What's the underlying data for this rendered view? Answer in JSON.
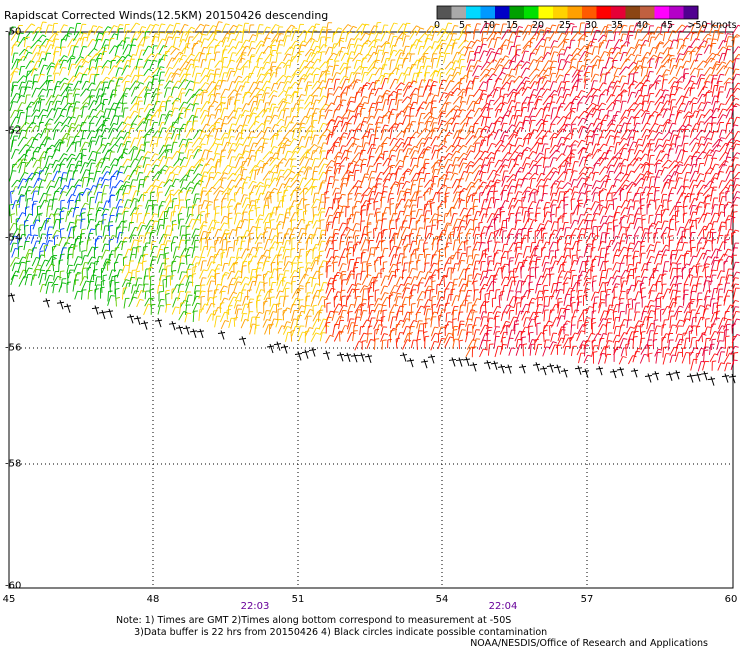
{
  "header": {
    "title": "Rapidscat Corrected Winds(12.5KM) 20150426 descending"
  },
  "color_key": {
    "colors": [
      "#555555",
      "#a9a9a9",
      "#00d9ff",
      "#0099ff",
      "#0000c8",
      "#00a000",
      "#00e000",
      "#ffff00",
      "#ffd200",
      "#ffa000",
      "#ff5a00",
      "#ff0000",
      "#e60036",
      "#8b4513",
      "#c06040",
      "#ff00ff",
      "#b400c8",
      "#500090"
    ],
    "labels": [
      "0",
      "5",
      "10",
      "15",
      "20",
      "25",
      "30",
      "35",
      "40",
      "45",
      ">50 knots"
    ]
  },
  "axes": {
    "x_ticks": [
      "45",
      "48",
      "51",
      "54",
      "57",
      "60"
    ],
    "y_ticks": [
      "-50",
      "-52",
      "-54",
      "-56",
      "-58",
      "-60"
    ]
  },
  "times": [
    "22:03",
    "22:04"
  ],
  "notes": {
    "line1": "Note: 1) Times are GMT 2)Times along bottom correspond to measurement at -50S",
    "line2": "      3)Data buffer is 22 hrs from 20150426 4) Black circles indicate possible contamination"
  },
  "credit": "NOAA/NESDIS/Office of Research and Applications"
}
